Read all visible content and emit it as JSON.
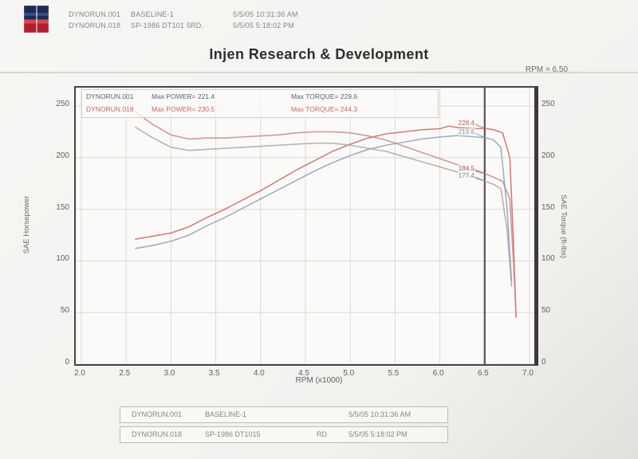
{
  "header": {
    "title": "Injen Research & Development",
    "rpm_cursor_label": "RPM = 6.50",
    "runs": [
      {
        "run": "DYNORUN.001",
        "desc": "BASELINE-1",
        "timestamp": "5/5/05 10:31:36 AM"
      },
      {
        "run": "DYNORUN.018",
        "desc": "SP-1986 DT101 5RD.",
        "timestamp": "5/5/05 5:18:02 PM"
      }
    ]
  },
  "legend": {
    "rows": [
      {
        "run": "DYNORUN.001",
        "power": "Max POWER= 221.4",
        "torque": "Max TORQUE= 229.6",
        "color": "#5a6170"
      },
      {
        "run": "DYNORUN.018",
        "power": "Max POWER= 230.5",
        "torque": "Max TORQUE= 244.3",
        "color": "#c06a6a"
      }
    ]
  },
  "footer_table": {
    "rows": [
      {
        "run": "DYNORUN.001",
        "desc": "BASELINE-1",
        "extra": "",
        "timestamp": "5/5/05 10:31:36 AM"
      },
      {
        "run": "DYNORUN.018",
        "desc": "SP-1986 DT1015",
        "extra": "RD",
        "timestamp": "5/5/05 5:18:02 PM"
      }
    ]
  },
  "chart_data": {
    "type": "line",
    "title": "Injen Research & Development",
    "xlabel": "RPM (x1000)",
    "ylabel_left": "SAE Horsepower",
    "ylabel_right": "SAE Torque (ft-lbs)",
    "xlim": [
      2.0,
      7.0
    ],
    "ylim": [
      0,
      250
    ],
    "x_ticks": [
      2.0,
      2.5,
      3.0,
      3.5,
      4.0,
      4.5,
      5.0,
      5.5,
      6.0,
      6.5,
      7.0
    ],
    "y_ticks": [
      0,
      50,
      100,
      150,
      200,
      250
    ],
    "grid": true,
    "cursor_rpm": 6.5,
    "cursor_labels": [
      {
        "text": "228.4",
        "value": 228.4,
        "color": "#c05a5a"
      },
      {
        "text": "219.6",
        "value": 219.6,
        "color": "#7d8fb3"
      },
      {
        "text": "184.5",
        "value": 184.5,
        "color": "#9e5c5c"
      },
      {
        "text": "177.4",
        "value": 177.4,
        "color": "#6f7d99"
      }
    ],
    "series": [
      {
        "name": "DYNORUN.018 SAE Horsepower",
        "color": "#c76b6b",
        "x": [
          2.6,
          2.8,
          3.0,
          3.2,
          3.4,
          3.6,
          3.8,
          4.0,
          4.2,
          4.4,
          4.6,
          4.8,
          5.0,
          5.2,
          5.4,
          5.6,
          5.8,
          6.0,
          6.1,
          6.2,
          6.4,
          6.5,
          6.6,
          6.7,
          6.78,
          6.82,
          6.85
        ],
        "y": [
          121,
          124,
          127,
          133,
          142,
          150,
          159,
          168,
          178,
          188,
          197,
          206,
          213,
          219,
          223,
          225,
          227,
          228,
          230.5,
          229,
          228,
          228.4,
          227,
          224,
          200,
          120,
          45
        ]
      },
      {
        "name": "DYNORUN.001 SAE Horsepower",
        "color": "#93a0b5",
        "x": [
          2.6,
          2.8,
          3.0,
          3.2,
          3.4,
          3.6,
          3.8,
          4.0,
          4.2,
          4.4,
          4.6,
          4.8,
          5.0,
          5.2,
          5.4,
          5.6,
          5.8,
          6.0,
          6.2,
          6.4,
          6.5,
          6.6,
          6.68,
          6.75,
          6.8
        ],
        "y": [
          112,
          115,
          119,
          125,
          134,
          142,
          151,
          160,
          169,
          178,
          187,
          195,
          202,
          208,
          212,
          215,
          218,
          220,
          221.4,
          220,
          219.6,
          217,
          210,
          150,
          80
        ]
      },
      {
        "name": "DYNORUN.018 SAE Torque",
        "color": "#c58a8a",
        "x": [
          2.6,
          2.8,
          3.0,
          3.2,
          3.4,
          3.6,
          3.8,
          4.0,
          4.2,
          4.4,
          4.6,
          4.8,
          5.0,
          5.2,
          5.4,
          5.6,
          5.8,
          6.0,
          6.2,
          6.4,
          6.5,
          6.6,
          6.7,
          6.78,
          6.82,
          6.85
        ],
        "y": [
          244.3,
          232,
          222,
          218,
          219,
          219,
          220,
          221,
          222,
          224,
          225,
          225,
          224,
          221,
          217,
          211,
          205,
          199,
          193,
          187,
          184.5,
          181,
          177,
          160,
          100,
          47
        ]
      },
      {
        "name": "DYNORUN.001 SAE Torque",
        "color": "#a7a7ad",
        "x": [
          2.6,
          2.8,
          3.0,
          3.2,
          3.4,
          3.6,
          3.8,
          4.0,
          4.2,
          4.4,
          4.6,
          4.8,
          5.0,
          5.2,
          5.4,
          5.6,
          5.8,
          6.0,
          6.2,
          6.4,
          6.5,
          6.6,
          6.68,
          6.75,
          6.8
        ],
        "y": [
          229.6,
          219,
          210,
          207,
          208,
          209,
          210,
          211,
          212,
          213,
          214,
          214,
          212,
          209,
          206,
          201,
          196,
          191,
          186,
          180,
          177.4,
          174,
          170,
          130,
          75
        ]
      }
    ]
  }
}
